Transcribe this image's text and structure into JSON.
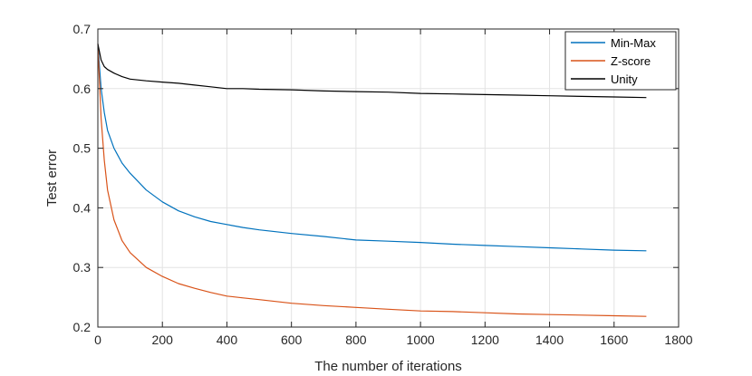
{
  "chart_data": {
    "type": "line",
    "title": "",
    "xlabel": "The number of iterations",
    "ylabel": "Test error",
    "xlim": [
      0,
      1800
    ],
    "ylim": [
      0.2,
      0.7
    ],
    "xticks": [
      0,
      200,
      400,
      600,
      800,
      1000,
      1200,
      1400,
      1600,
      1800
    ],
    "xtick_labels": [
      "0",
      "200",
      "400",
      "600",
      "800",
      "1000",
      "1200",
      "1400",
      "1600",
      "1800"
    ],
    "yticks": [
      0.2,
      0.3,
      0.4,
      0.5,
      0.6,
      0.7
    ],
    "ytick_labels": [
      "0.2",
      "0.3",
      "0.4",
      "0.5",
      "0.6",
      "0.7"
    ],
    "grid": true,
    "legend_position": "top-right",
    "series": [
      {
        "name": "Min-Max",
        "color": "#0072BD",
        "x": [
          0,
          10,
          20,
          30,
          50,
          75,
          100,
          150,
          200,
          250,
          300,
          350,
          400,
          450,
          500,
          600,
          700,
          800,
          900,
          1000,
          1100,
          1200,
          1300,
          1400,
          1500,
          1600,
          1700
        ],
        "y": [
          0.675,
          0.6,
          0.56,
          0.53,
          0.5,
          0.475,
          0.458,
          0.43,
          0.41,
          0.395,
          0.385,
          0.377,
          0.372,
          0.367,
          0.363,
          0.357,
          0.352,
          0.346,
          0.344,
          0.342,
          0.339,
          0.337,
          0.335,
          0.333,
          0.331,
          0.329,
          0.328
        ]
      },
      {
        "name": "Z-score",
        "color": "#D95319",
        "x": [
          0,
          10,
          20,
          30,
          50,
          75,
          100,
          150,
          200,
          250,
          300,
          350,
          400,
          450,
          500,
          600,
          700,
          800,
          900,
          1000,
          1100,
          1200,
          1300,
          1400,
          1500,
          1600,
          1700
        ],
        "y": [
          0.675,
          0.55,
          0.48,
          0.43,
          0.38,
          0.345,
          0.325,
          0.3,
          0.285,
          0.273,
          0.265,
          0.258,
          0.252,
          0.249,
          0.246,
          0.24,
          0.236,
          0.233,
          0.23,
          0.227,
          0.226,
          0.224,
          0.222,
          0.221,
          0.22,
          0.219,
          0.218
        ]
      },
      {
        "name": "Unity",
        "color": "#000000",
        "x": [
          0,
          10,
          20,
          30,
          50,
          75,
          100,
          150,
          200,
          250,
          300,
          350,
          400,
          450,
          500,
          600,
          700,
          800,
          900,
          1000,
          1100,
          1200,
          1300,
          1400,
          1500,
          1600,
          1700
        ],
        "y": [
          0.675,
          0.648,
          0.637,
          0.632,
          0.626,
          0.62,
          0.616,
          0.613,
          0.611,
          0.609,
          0.606,
          0.603,
          0.6,
          0.6,
          0.599,
          0.598,
          0.596,
          0.595,
          0.594,
          0.592,
          0.591,
          0.59,
          0.589,
          0.588,
          0.587,
          0.586,
          0.585
        ]
      }
    ]
  }
}
